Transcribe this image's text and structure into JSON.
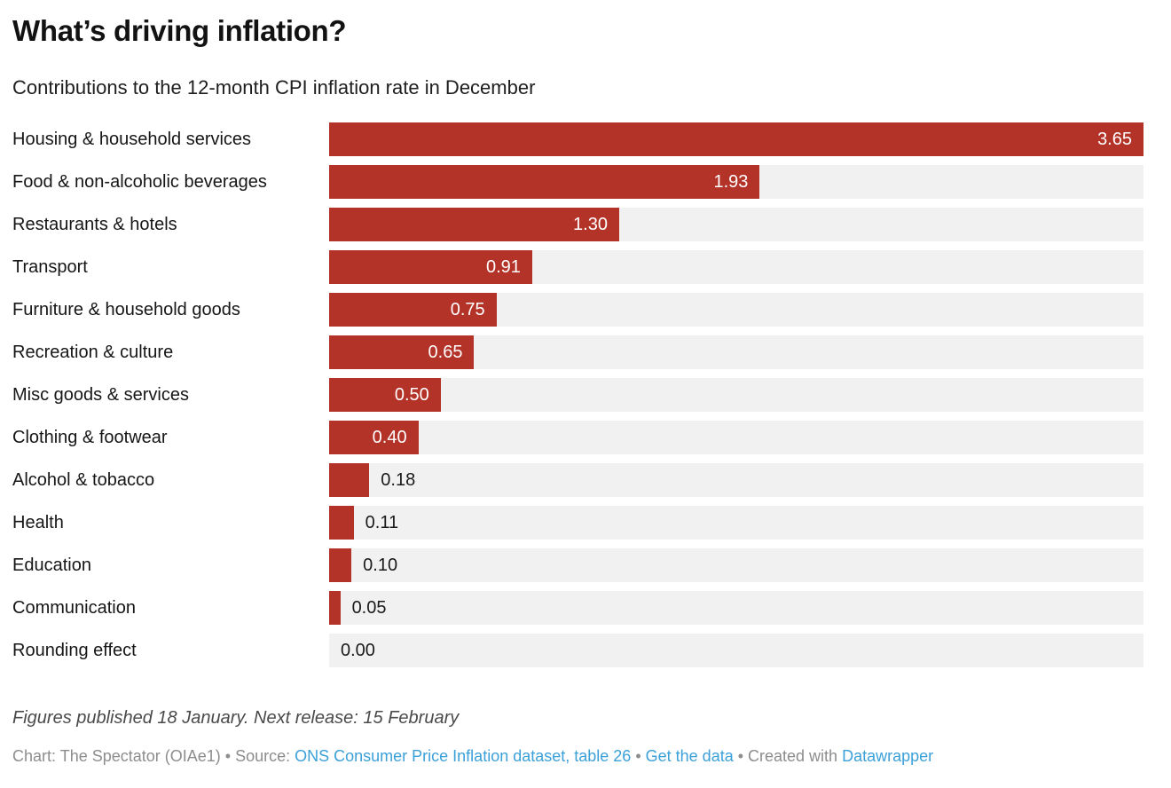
{
  "header": {
    "title": "What’s driving inflation?",
    "subtitle": "Contributions to the 12-month CPI inflation rate in December"
  },
  "chart_data": {
    "type": "bar",
    "orientation": "horizontal",
    "title": "What’s driving inflation?",
    "subtitle": "Contributions to the 12-month CPI inflation rate in December",
    "categories": [
      "Housing & household services",
      "Food & non-alcoholic beverages",
      "Restaurants & hotels",
      "Transport",
      "Furniture & household goods",
      "Recreation & culture",
      "Misc goods & services",
      "Clothing & footwear",
      "Alcohol & tobacco",
      "Health",
      "Education",
      "Communication",
      "Rounding effect"
    ],
    "values": [
      3.65,
      1.93,
      1.3,
      0.91,
      0.75,
      0.65,
      0.5,
      0.4,
      0.18,
      0.11,
      0.1,
      0.05,
      0.0
    ],
    "value_labels": [
      "3.65",
      "1.93",
      "1.30",
      "0.91",
      "0.75",
      "0.65",
      "0.50",
      "0.40",
      "0.18",
      "0.11",
      "0.10",
      "0.05",
      "0.00"
    ],
    "xlim": [
      0,
      3.65
    ],
    "grid": false,
    "legend": false,
    "bar_color": "#b43329",
    "track_color": "#f1f1f1"
  },
  "footer": {
    "footnote": "Figures published 18 January. Next release: 15 February",
    "credit_segments": [
      {
        "text": "Chart: The Spectator (OIAe1) • Source: ",
        "style": "muted",
        "name": "credit-text"
      },
      {
        "text": "ONS Consumer Price Inflation dataset, table 26",
        "style": "link",
        "name": "source-dataset-link"
      },
      {
        "text": " • ",
        "style": "muted",
        "name": "credit-separator"
      },
      {
        "text": "Get the data",
        "style": "link",
        "name": "get-the-data-link"
      },
      {
        "text": " • Created with ",
        "style": "muted",
        "name": "credit-text"
      },
      {
        "text": "Datawrapper",
        "style": "link",
        "name": "datawrapper-link"
      }
    ]
  },
  "colors": {
    "bar": "#b43329",
    "track": "#f1f1f1",
    "link": "#3ca0d9",
    "muted_text": "#8d8d8d"
  }
}
